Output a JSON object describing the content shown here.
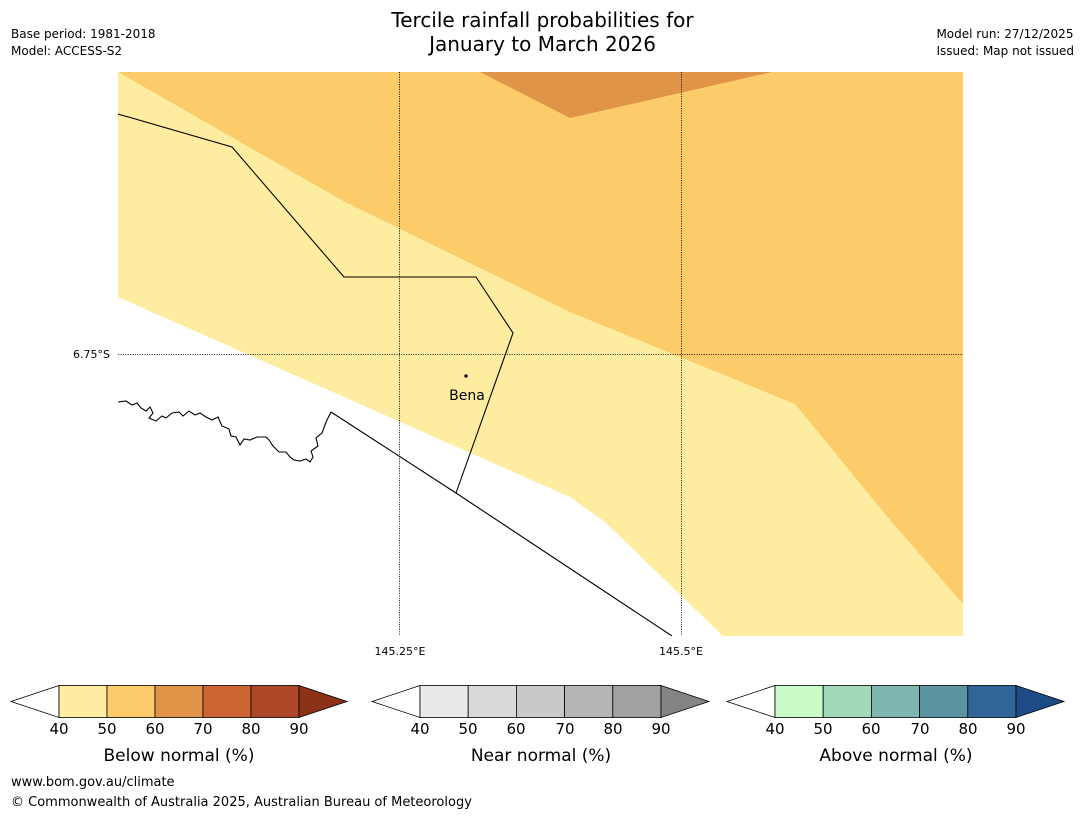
{
  "title": {
    "line1": "Tercile rainfall probabilities for",
    "line2": "January to March 2026"
  },
  "meta": {
    "base_period": "Base period: 1981-2018",
    "model": "Model: ACCESS-S2",
    "model_run": "Model run: 27/12/2025",
    "issued": "Issued: Map not issued"
  },
  "map": {
    "place_label": "Bena",
    "lat_label": "6.75°S",
    "lon_labels": [
      "145.25°E",
      "145.5°E"
    ],
    "region_colors": {
      "prob_40_50": "#feeca0",
      "prob_50_60": "#fdcc6a",
      "prob_60_70": "#e09448"
    }
  },
  "colorbars": [
    {
      "label": "Below normal (%)",
      "ticks": [
        "40",
        "50",
        "60",
        "70",
        "80",
        "90"
      ],
      "colors": [
        "#feeca0",
        "#fdcc6a",
        "#e09448",
        "#cc6333",
        "#ac4828"
      ],
      "end_color": "#8c3016"
    },
    {
      "label": "Near normal (%)",
      "ticks": [
        "40",
        "50",
        "60",
        "70",
        "80",
        "90"
      ],
      "colors": [
        "#e8e8e8",
        "#dadada",
        "#c9c9c9",
        "#b5b5b5",
        "#a1a1a1"
      ],
      "end_color": "#848484"
    },
    {
      "label": "Above normal (%)",
      "ticks": [
        "40",
        "50",
        "60",
        "70",
        "80",
        "90"
      ],
      "colors": [
        "#c9fbc9",
        "#a3d9bb",
        "#80b6b0",
        "#5a94a0",
        "#2f6597"
      ],
      "end_color": "#1d4b86"
    }
  ],
  "footer": {
    "url": "www.bom.gov.au/climate",
    "copyright": "© Commonwealth of Australia 2025, Australian Bureau of Meteorology"
  }
}
